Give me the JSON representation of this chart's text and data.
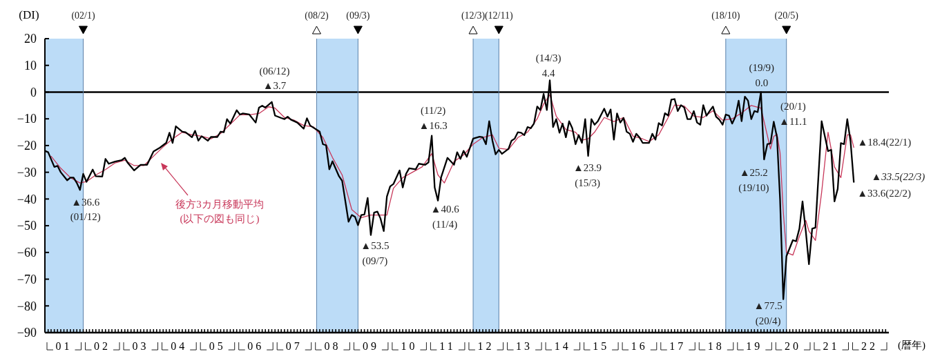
{
  "chart_data": {
    "type": "line",
    "ylabel": "(DI)",
    "xlabel": "(暦年)",
    "xlim": [
      "2001-01",
      "2023-01"
    ],
    "xticks": [
      {
        "value": "2001-07",
        "label": "01"
      },
      {
        "value": "2002-07",
        "label": "02"
      },
      {
        "value": "2003-07",
        "label": "03"
      },
      {
        "value": "2004-07",
        "label": "04"
      },
      {
        "value": "2005-07",
        "label": "05"
      },
      {
        "value": "2006-07",
        "label": "06"
      },
      {
        "value": "2007-07",
        "label": "07"
      },
      {
        "value": "2008-07",
        "label": "08"
      },
      {
        "value": "2009-07",
        "label": "09"
      },
      {
        "value": "2010-07",
        "label": "10"
      },
      {
        "value": "2011-07",
        "label": "11"
      },
      {
        "value": "2012-07",
        "label": "12"
      },
      {
        "value": "2013-07",
        "label": "13"
      },
      {
        "value": "2014-07",
        "label": "14"
      },
      {
        "value": "2015-07",
        "label": "15"
      },
      {
        "value": "2016-07",
        "label": "16"
      },
      {
        "value": "2017-07",
        "label": "17"
      },
      {
        "value": "2018-07",
        "label": "18"
      },
      {
        "value": "2019-07",
        "label": "19"
      },
      {
        "value": "2020-07",
        "label": "20"
      },
      {
        "value": "2021-07",
        "label": "21"
      },
      {
        "value": "2022-07",
        "label": "22"
      }
    ],
    "ylim": [
      -90,
      20
    ],
    "yticks": [
      -90,
      -80,
      -70,
      -60,
      -50,
      -40,
      -30,
      -20,
      -10,
      0,
      10,
      20
    ],
    "series": [
      {
        "color": "#000000",
        "x": [
          "2001-01",
          "2001-02",
          "2001-04",
          "2001-05",
          "2001-06",
          "2001-08",
          "2001-09",
          "2001-10",
          "2001-11",
          "2001-12",
          "2002-01",
          "2002-02",
          "2002-04",
          "2002-05",
          "2002-07",
          "2002-08",
          "2002-09",
          "2002-11",
          "2003-01",
          "2003-02",
          "2003-03",
          "2003-05",
          "2003-07",
          "2003-09",
          "2003-11",
          "2004-01",
          "2004-03",
          "2004-04",
          "2004-05",
          "2004-06",
          "2004-08",
          "2004-09",
          "2004-11",
          "2004-12",
          "2005-01",
          "2005-02",
          "2005-04",
          "2005-05",
          "2005-07",
          "2005-08",
          "2005-09",
          "2005-10",
          "2005-11",
          "2006-01",
          "2006-02",
          "2006-03",
          "2006-05",
          "2006-07",
          "2006-08",
          "2006-09",
          "2006-10",
          "2006-12",
          "2007-01",
          "2007-03",
          "2007-04",
          "2007-05",
          "2007-06",
          "2007-08",
          "2007-10",
          "2007-11",
          "2007-12",
          "2008-03",
          "2008-04",
          "2008-05",
          "2008-06",
          "2008-07",
          "2008-09",
          "2008-10",
          "2008-12",
          "2009-01",
          "2009-02",
          "2009-03",
          "2009-04",
          "2009-05",
          "2009-06",
          "2009-07",
          "2009-08",
          "2009-09",
          "2009-10",
          "2009-11",
          "2009-12",
          "2010-01",
          "2010-02",
          "2010-04",
          "2010-05",
          "2010-06",
          "2010-07",
          "2010-09",
          "2010-10",
          "2010-12",
          "2011-01",
          "2011-02",
          "2011-03",
          "2011-04",
          "2011-05",
          "2011-07",
          "2011-09",
          "2011-10",
          "2011-11",
          "2011-12",
          "2012-01",
          "2012-03",
          "2012-05",
          "2012-06",
          "2012-07",
          "2012-08",
          "2012-09",
          "2012-10",
          "2012-11",
          "2012-12",
          "2013-02",
          "2013-03",
          "2013-04",
          "2013-05",
          "2013-06",
          "2013-07",
          "2013-08",
          "2013-09",
          "2013-10",
          "2013-11",
          "2013-12",
          "2014-01",
          "2014-02",
          "2014-03",
          "2014-04",
          "2014-05",
          "2014-06",
          "2014-07",
          "2014-08",
          "2014-09",
          "2014-10",
          "2014-11",
          "2014-12",
          "2015-01",
          "2015-02",
          "2015-03",
          "2015-04",
          "2015-05",
          "2015-06",
          "2015-08",
          "2015-09",
          "2015-10",
          "2015-11",
          "2015-12",
          "2016-01",
          "2016-02",
          "2016-03",
          "2016-04",
          "2016-05",
          "2016-06",
          "2016-07",
          "2016-08",
          "2016-10",
          "2016-11",
          "2016-12",
          "2017-01",
          "2017-02",
          "2017-03",
          "2017-04",
          "2017-05",
          "2017-06",
          "2017-07",
          "2017-08",
          "2017-09",
          "2017-10",
          "2017-11",
          "2017-12",
          "2018-01",
          "2018-02",
          "2018-03",
          "2018-04",
          "2018-05",
          "2018-06",
          "2018-07",
          "2018-08",
          "2018-09",
          "2018-10",
          "2018-11",
          "2018-12",
          "2019-01",
          "2019-02",
          "2019-03",
          "2019-04",
          "2019-05",
          "2019-06",
          "2019-07",
          "2019-08",
          "2019-09",
          "2019-10",
          "2019-11",
          "2019-12",
          "2020-01",
          "2020-02",
          "2020-03",
          "2020-04",
          "2020-05",
          "2020-07",
          "2020-08",
          "2020-09",
          "2020-10",
          "2020-11",
          "2020-12",
          "2021-01",
          "2021-02",
          "2021-04",
          "2021-06",
          "2021-07",
          "2021-08",
          "2021-09",
          "2021-10",
          "2021-11",
          "2021-12",
          "2022-01",
          "2022-02"
        ],
        "values": [
          -22,
          -22.5,
          -28,
          -27.6,
          -30,
          -33,
          -32,
          -32,
          -34,
          -36.6,
          -30.6,
          -33.6,
          -29,
          -31.5,
          -31.6,
          -25,
          -26.8,
          -26,
          -25.5,
          -24.6,
          -26.5,
          -29.3,
          -27.2,
          -27.2,
          -22.2,
          -20.8,
          -19,
          -15.2,
          -19,
          -12.8,
          -14.8,
          -15,
          -16.9,
          -14.5,
          -18.2,
          -16.5,
          -18.2,
          -16.8,
          -16.8,
          -14.8,
          -15,
          -10.1,
          -11.8,
          -6.8,
          -8.4,
          -8,
          -8.4,
          -11.4,
          -5.8,
          -5.1,
          -5.8,
          -3.7,
          -8.8,
          -9.7,
          -10.1,
          -9.2,
          -10.3,
          -11.4,
          -13.7,
          -9.8,
          -12.5,
          -14.8,
          -19.5,
          -19.9,
          -28.9,
          -25.9,
          -31.5,
          -33.2,
          -48.5,
          -46,
          -46.7,
          -49.8,
          -46,
          -45.8,
          -39.6,
          -53.5,
          -45.1,
          -44.7,
          -47.3,
          -52,
          -39.1,
          -35.3,
          -34.4,
          -29.3,
          -35.7,
          -30.6,
          -28.5,
          -28.9,
          -26.8,
          -27.2,
          -26.3,
          -16.3,
          -35.7,
          -40.6,
          -31.9,
          -24.6,
          -27.2,
          -22.5,
          -25,
          -22,
          -24.2,
          -17.4,
          -16.7,
          -16.9,
          -19.5,
          -10.9,
          -18.2,
          -23.3,
          -21.6,
          -23.1,
          -21.2,
          -18.2,
          -17.4,
          -15,
          -15.2,
          -16.1,
          -13.1,
          -13.5,
          -11.8,
          -5.4,
          -6.7,
          -0.7,
          -6.7,
          4.4,
          -13.1,
          -10.1,
          -15.2,
          -11.8,
          -16.9,
          -10.9,
          -13.5,
          -19.5,
          -16.1,
          -19,
          -10.1,
          -23.9,
          -10.1,
          -12.2,
          -10.9,
          -6.2,
          -9.2,
          -6.5,
          -17.8,
          -8,
          -11.4,
          -9.7,
          -14.8,
          -15.6,
          -18.6,
          -15.6,
          -16.9,
          -19,
          -19,
          -15.6,
          -17.8,
          -11.6,
          -12.5,
          -7.9,
          -8.8,
          -2.8,
          -2.6,
          -7.1,
          -4.9,
          -5.8,
          -10.1,
          -10.1,
          -7.1,
          -11.4,
          -12.2,
          -4.9,
          -8.8,
          -7.1,
          -5.4,
          -9.2,
          -10.3,
          -12.2,
          -8.4,
          -8.8,
          -11.8,
          -9.2,
          -3.2,
          -10.9,
          -1.7,
          -3.2,
          -10.1,
          -7.1,
          -7.5,
          0.0,
          -25.2,
          -19.5,
          -19.2,
          -11.1,
          -16.9,
          -40,
          -77.5,
          -61.4,
          -55.4,
          -55.8,
          -51.1,
          -40.9,
          -52,
          -64.4,
          -51.1,
          -50.7,
          -10.9,
          -22.1,
          -21.6,
          -40.9,
          -36.2,
          -19.1,
          -19.5,
          -10.1,
          -18.4,
          -33.6
        ]
      },
      {
        "name": "後方3カ月移動平均",
        "color": "#c8385a",
        "x": [
          "2001-03",
          "2001-06",
          "2001-09",
          "2001-12",
          "2002-02",
          "2002-05",
          "2002-08",
          "2002-11",
          "2003-02",
          "2003-05",
          "2003-08",
          "2003-11",
          "2004-02",
          "2004-05",
          "2004-08",
          "2004-11",
          "2005-02",
          "2005-05",
          "2005-08",
          "2005-11",
          "2006-02",
          "2006-05",
          "2006-08",
          "2006-11",
          "2007-01",
          "2007-04",
          "2007-07",
          "2007-10",
          "2008-01",
          "2008-04",
          "2008-07",
          "2008-10",
          "2009-01",
          "2009-04",
          "2009-07",
          "2009-10",
          "2009-12",
          "2010-02",
          "2010-05",
          "2010-08",
          "2010-11",
          "2011-02",
          "2011-04",
          "2011-06",
          "2011-09",
          "2011-12",
          "2012-03",
          "2012-06",
          "2012-09",
          "2012-11",
          "2013-02",
          "2013-05",
          "2013-08",
          "2013-11",
          "2014-01",
          "2014-03",
          "2014-05",
          "2014-08",
          "2014-11",
          "2015-01",
          "2015-03",
          "2015-05",
          "2015-08",
          "2015-11",
          "2016-02",
          "2016-05",
          "2016-08",
          "2016-10",
          "2017-01",
          "2017-04",
          "2017-06",
          "2017-09",
          "2017-12",
          "2018-03",
          "2018-06",
          "2018-09",
          "2018-12",
          "2019-03",
          "2019-06",
          "2019-09",
          "2019-10",
          "2019-12",
          "2020-01",
          "2020-02",
          "2020-03",
          "2020-04",
          "2020-05",
          "2020-07",
          "2020-09",
          "2020-11",
          "2020-12",
          "2021-02",
          "2021-04",
          "2021-06",
          "2021-08",
          "2021-10",
          "2021-12",
          "2022-01",
          "2022-02"
        ],
        "values": [
          -24,
          -28.5,
          -32,
          -34,
          -33.5,
          -31,
          -29,
          -26.5,
          -25.5,
          -27.5,
          -27.5,
          -24,
          -20.5,
          -17.5,
          -15,
          -16,
          -16.5,
          -17.5,
          -15.5,
          -12,
          -8.5,
          -8.5,
          -8,
          -5.5,
          -6,
          -9.5,
          -10.5,
          -12.5,
          -13,
          -17,
          -24.5,
          -31,
          -44,
          -47,
          -46,
          -46,
          -46,
          -36,
          -32,
          -30,
          -28,
          -23,
          -31,
          -34,
          -26,
          -23.5,
          -19.5,
          -17,
          -16,
          -21,
          -21.5,
          -17,
          -15,
          -10,
          -4.5,
          -1,
          -9,
          -14,
          -15,
          -18,
          -17.5,
          -15,
          -9.5,
          -11,
          -9.5,
          -16.5,
          -17.5,
          -18.5,
          -16,
          -9.5,
          -4.8,
          -5.2,
          -9,
          -9.5,
          -7,
          -10.5,
          -10,
          -7.8,
          -5,
          -6,
          -11,
          -21.3,
          -16.6,
          -15.7,
          -22.7,
          -45,
          -60,
          -61,
          -54,
          -48,
          -52,
          -55.5,
          -37.5,
          -15,
          -28,
          -32,
          -16,
          -16,
          -20.7
        ]
      }
    ],
    "bands": [
      {
        "axis": "x",
        "from": "2001-01",
        "to": "2002-01",
        "color": "#bcdcf7"
      },
      {
        "axis": "x",
        "from": "2008-02",
        "to": "2009-03",
        "color": "#bcdcf7"
      },
      {
        "axis": "x",
        "from": "2012-03",
        "to": "2012-11",
        "color": "#bcdcf7"
      },
      {
        "axis": "x",
        "from": "2018-10",
        "to": "2020-05",
        "color": "#bcdcf7"
      }
    ],
    "ref_lines": [
      {
        "axis": "y",
        "value": 0,
        "color": "#000000"
      },
      {
        "axis": "x",
        "value": "2002-01",
        "label": "(02/1)",
        "color": "#5a80aa"
      },
      {
        "axis": "x",
        "value": "2008-02",
        "label": "(08/2)",
        "color": "#5a80aa"
      },
      {
        "axis": "x",
        "value": "2009-03",
        "label": "(09/3)",
        "color": "#5a80aa"
      },
      {
        "axis": "x",
        "value": "2012-03",
        "label": "(12/3)",
        "color": "#5a80aa"
      },
      {
        "axis": "x",
        "value": "2012-11",
        "label": "(12/11)",
        "color": "#5a80aa"
      },
      {
        "axis": "x",
        "value": "2018-10",
        "label": "(18/10)",
        "color": "#5a80aa"
      },
      {
        "axis": "x",
        "value": "2020-05",
        "label": "(20/5)",
        "color": "#5a80aa"
      }
    ],
    "annotations": [
      {
        "text": "▲36.6\n(01/12)",
        "x": "2001-12",
        "y": -36.6
      },
      {
        "text": "(06/12)\n▲3.7",
        "x": "2006-12",
        "y": -3.7
      },
      {
        "text": "(11/2)\n▲16.3",
        "x": "2011-02",
        "y": -16.3
      },
      {
        "text": "▲40.6\n(11/4)",
        "x": "2011-04",
        "y": -40.6
      },
      {
        "text": "▲53.5\n(09/7)",
        "x": "2009-07",
        "y": -53.5
      },
      {
        "text": "(14/3)\n4.4",
        "x": "2014-03",
        "y": 4.4
      },
      {
        "text": "▲23.9\n(15/3)",
        "x": "2015-03",
        "y": -23.9
      },
      {
        "text": "(19/9)\n0.0",
        "x": "2019-09",
        "y": 0.0
      },
      {
        "text": "▲25.2\n(19/10)",
        "x": "2019-10",
        "y": -25.2
      },
      {
        "text": "(20/1)\n▲11.1",
        "x": "2020-01",
        "y": -11.1
      },
      {
        "text": "▲77.5\n(20/4)",
        "x": "2020-04",
        "y": -77.5
      },
      {
        "text": "▲18.4(22/1)",
        "x": "2022-01",
        "y": -18.4
      },
      {
        "text": "▲33.6(22/2)",
        "x": "2022-02",
        "y": -33.6
      },
      {
        "text": "▲33.5(22/3)",
        "x": "2022-03",
        "y": -33.5
      },
      "(以下の図も同じ)"
    ]
  }
}
